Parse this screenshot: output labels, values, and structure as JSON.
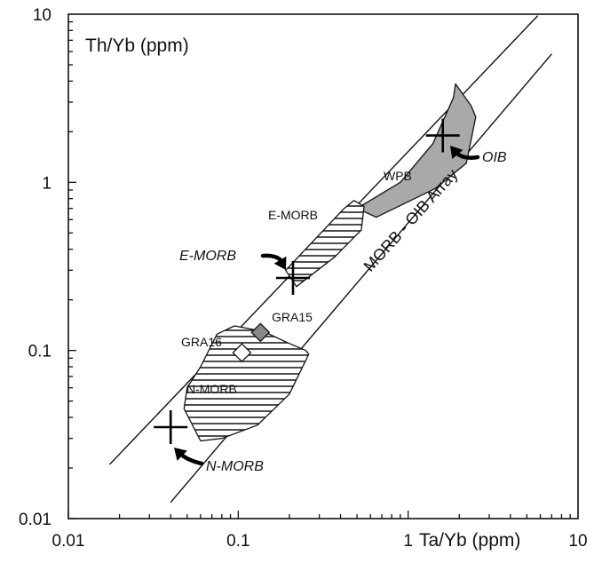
{
  "chart_data": {
    "type": "scatter",
    "xscale": "log",
    "yscale": "log",
    "xlim": [
      0.01,
      10
    ],
    "ylim": [
      0.01,
      10
    ],
    "xlabel": "Ta/Yb (ppm)",
    "ylabel": "Th/Yb (ppm)",
    "x_tick_labels": [
      "0.01",
      "0.1",
      "1",
      "10"
    ],
    "y_tick_labels": [
      "0.01",
      "0.1",
      "1",
      "10"
    ],
    "grid": false,
    "array": {
      "label": "MORB - OIB Array",
      "lower_bound": [
        [
          0.04,
          0.0125
        ],
        [
          7.0,
          5.8
        ]
      ],
      "upper_bound": [
        [
          0.0175,
          0.021
        ],
        [
          5.8,
          9.8
        ]
      ]
    },
    "fields": [
      {
        "name": "WPB",
        "label": "WPB",
        "fill": "#a9a9a9",
        "hatch": false,
        "polygon": [
          [
            0.5,
            0.7
          ],
          [
            0.9,
            1.0
          ],
          [
            1.4,
            1.7
          ],
          [
            1.85,
            3.2
          ],
          [
            1.9,
            3.85
          ],
          [
            2.35,
            2.85
          ],
          [
            2.5,
            2.45
          ],
          [
            2.2,
            1.3
          ],
          [
            1.45,
            0.92
          ],
          [
            0.65,
            0.62
          ]
        ]
      },
      {
        "name": "E-MORB",
        "label": "E-MORB",
        "fill": "none",
        "hatch": true,
        "polygon": [
          [
            0.42,
            0.7
          ],
          [
            0.48,
            0.78
          ],
          [
            0.55,
            0.72
          ],
          [
            0.53,
            0.52
          ],
          [
            0.37,
            0.36
          ],
          [
            0.22,
            0.24
          ],
          [
            0.19,
            0.3
          ]
        ]
      },
      {
        "name": "N-MORB",
        "label": "N-MORB",
        "fill": "none",
        "hatch": true,
        "polygon": [
          [
            0.075,
            0.125
          ],
          [
            0.095,
            0.14
          ],
          [
            0.14,
            0.13
          ],
          [
            0.2,
            0.11
          ],
          [
            0.25,
            0.1
          ],
          [
            0.26,
            0.095
          ],
          [
            0.2,
            0.055
          ],
          [
            0.13,
            0.036
          ],
          [
            0.08,
            0.03
          ],
          [
            0.06,
            0.029
          ],
          [
            0.048,
            0.045
          ],
          [
            0.05,
            0.06
          ],
          [
            0.06,
            0.08
          ]
        ]
      }
    ],
    "samples": [
      {
        "name": "GRA15",
        "label": "GRA15",
        "x": 0.135,
        "y": 0.128,
        "marker": "diamond",
        "fill": "#888888"
      },
      {
        "name": "GRA16",
        "label": "GRA16",
        "x": 0.105,
        "y": 0.097,
        "marker": "diamond",
        "fill": "#ffffff"
      }
    ],
    "reference_points": [
      {
        "name": "N-MORB",
        "label": "N-MORB",
        "x": 0.04,
        "y": 0.035,
        "marker": "cross"
      },
      {
        "name": "E-MORB",
        "label": "E-MORB",
        "x": 0.21,
        "y": 0.27,
        "marker": "cross"
      },
      {
        "name": "OIB",
        "label": "OIB",
        "x": 1.6,
        "y": 1.9,
        "marker": "cross"
      }
    ]
  },
  "colors": {
    "axis": "#111111",
    "wpb_fill": "#a9a9a9",
    "gra15_fill": "#888888",
    "hatch": "#222222"
  }
}
